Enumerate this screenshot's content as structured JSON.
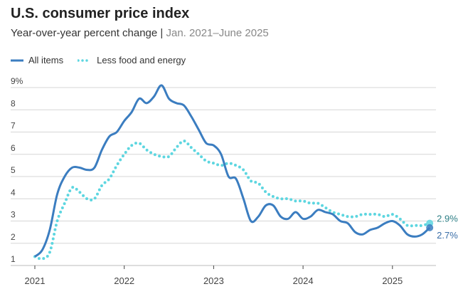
{
  "chart_data": {
    "type": "line",
    "title": "U.S. consumer price index",
    "subtitle": "Year-over-year percent change",
    "subtitle_sep": " | ",
    "subtitle_range": "Jan. 2021–June 2025",
    "xlabel": "",
    "ylabel": "",
    "ylim": [
      1,
      9
    ],
    "yticks": [
      "1",
      "2",
      "3",
      "4",
      "5",
      "6",
      "7",
      "8",
      "9%"
    ],
    "xticks": [
      "2021",
      "2022",
      "2023",
      "2024",
      "2025"
    ],
    "grid": true,
    "legend_placement": "top-left",
    "colors": {
      "all": "#3b7dc0",
      "core": "#5dd6e0"
    },
    "series": [
      {
        "name": "All items",
        "end_label": "2.7%",
        "values": [
          1.4,
          1.7,
          2.6,
          4.2,
          5.0,
          5.4,
          5.4,
          5.3,
          5.4,
          6.2,
          6.8,
          7.0,
          7.5,
          7.9,
          8.5,
          8.3,
          8.6,
          9.1,
          8.5,
          8.3,
          8.2,
          7.7,
          7.1,
          6.5,
          6.4,
          6.0,
          5.0,
          4.9,
          4.0,
          3.0,
          3.2,
          3.7,
          3.7,
          3.2,
          3.1,
          3.4,
          3.1,
          3.2,
          3.5,
          3.4,
          3.3,
          3.0,
          2.9,
          2.5,
          2.4,
          2.6,
          2.7,
          2.9,
          3.0,
          2.8,
          2.4,
          2.3,
          2.4,
          2.7
        ]
      },
      {
        "name": "Less food and energy",
        "end_label": "2.9%",
        "values": [
          1.4,
          1.3,
          1.6,
          3.0,
          3.8,
          4.5,
          4.3,
          4.0,
          4.0,
          4.6,
          4.9,
          5.5,
          6.0,
          6.4,
          6.5,
          6.2,
          6.0,
          5.9,
          5.9,
          6.3,
          6.6,
          6.3,
          6.0,
          5.7,
          5.6,
          5.5,
          5.6,
          5.5,
          5.3,
          4.8,
          4.7,
          4.3,
          4.1,
          4.0,
          4.0,
          3.9,
          3.9,
          3.8,
          3.8,
          3.6,
          3.4,
          3.3,
          3.2,
          3.2,
          3.3,
          3.3,
          3.3,
          3.2,
          3.3,
          3.1,
          2.8,
          2.8,
          2.8,
          2.9
        ]
      }
    ]
  }
}
